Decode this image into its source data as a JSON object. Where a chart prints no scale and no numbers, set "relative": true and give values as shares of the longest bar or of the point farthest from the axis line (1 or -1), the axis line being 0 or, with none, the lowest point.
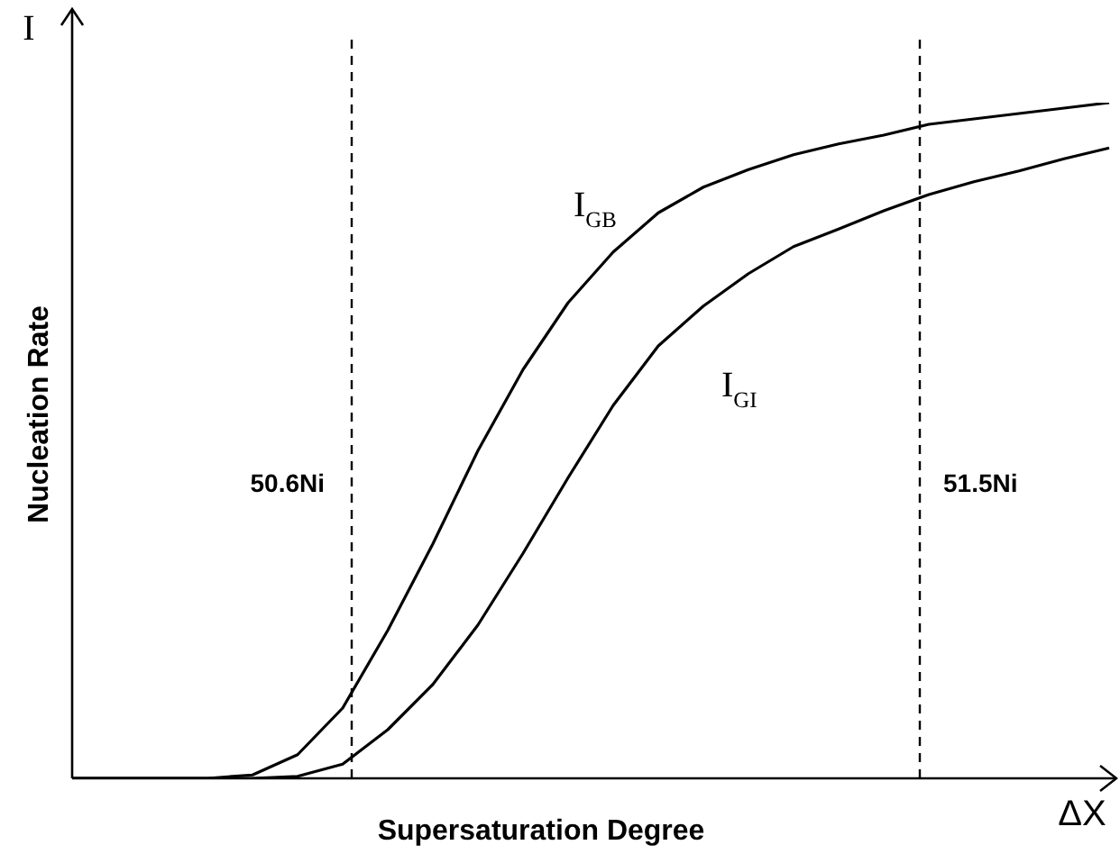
{
  "chart_data": {
    "type": "line",
    "relative": true,
    "xlabel": "Supersaturation Degree",
    "ylabel": "Nucleation Rate",
    "annotations": [
      "I",
      "ΔX",
      "50.6Ni",
      "51.5Ni"
    ],
    "legend": false,
    "marker": "none",
    "line_style": "solid",
    "categories": [
      null,
      null,
      null,
      null,
      null,
      null,
      null,
      null,
      null,
      null,
      null,
      null,
      null,
      null,
      null,
      null,
      null,
      null,
      null,
      null,
      null,
      null,
      null,
      null
    ],
    "series": [
      {
        "name": "I$_{GB}$",
        "color": "#000000",
        "values": [
          0,
          0,
          0,
          0,
          0.005,
          0.035,
          0.104,
          0.219,
          0.347,
          0.485,
          0.605,
          0.704,
          0.779,
          0.837,
          0.875,
          0.901,
          0.923,
          0.939,
          0.952,
          0.968,
          0.976,
          0.984,
          0.992,
          1
        ]
      },
      {
        "name": "I$_{GI}$",
        "color": "#000000",
        "values": [
          0,
          0,
          0,
          0,
          0,
          0.003,
          0.021,
          0.072,
          0.139,
          0.227,
          0.333,
          0.445,
          0.552,
          0.64,
          0.699,
          0.747,
          0.787,
          0.813,
          0.84,
          0.864,
          0.883,
          0.899,
          0.917,
          0.933
        ]
      }
    ]
  }
}
